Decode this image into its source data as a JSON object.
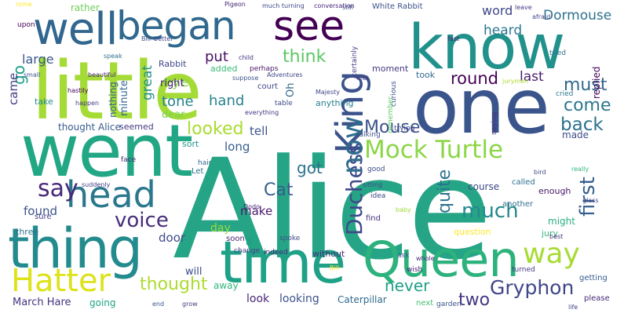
{
  "words": [
    {
      "text": "Alice",
      "color": "#26a586"
    },
    {
      "text": "little",
      "color": "#a5db36"
    },
    {
      "text": "one",
      "color": "#3a548c"
    },
    {
      "text": "went",
      "color": "#22a785"
    },
    {
      "text": "know",
      "color": "#21918c"
    },
    {
      "text": "time",
      "color": "#1fa187"
    },
    {
      "text": "Queen",
      "color": "#2db27d"
    },
    {
      "text": "thing",
      "color": "#238a8d"
    },
    {
      "text": "head",
      "color": "#2a788e"
    },
    {
      "text": "well",
      "color": "#31668e"
    },
    {
      "text": "began",
      "color": "#31688e"
    },
    {
      "text": "see",
      "color": "#440154"
    },
    {
      "text": "King",
      "color": "#3b528b"
    },
    {
      "text": "Mock Turtle",
      "color": "#8bd646"
    },
    {
      "text": "Hatter",
      "color": "#dde318"
    },
    {
      "text": "way",
      "color": "#a8db34"
    },
    {
      "text": "Duchess",
      "color": "#3e4a89"
    },
    {
      "text": "now",
      "color": "#2f6c8e"
    },
    {
      "text": "say",
      "color": "#482878"
    },
    {
      "text": "voice",
      "color": "#472d7b"
    },
    {
      "text": "much",
      "color": "#23898e"
    },
    {
      "text": "Gryphon",
      "color": "#404688"
    },
    {
      "text": "first",
      "color": "#355f8d"
    },
    {
      "text": "thought",
      "color": "#addc30"
    },
    {
      "text": "think",
      "color": "#5cc863"
    },
    {
      "text": "Mouse",
      "color": "#3b528b"
    },
    {
      "text": "looked",
      "color": "#aadc32"
    },
    {
      "text": "round",
      "color": "#440154"
    },
    {
      "text": "must",
      "color": "#31688e"
    },
    {
      "text": "come",
      "color": "#2a788e"
    },
    {
      "text": "back",
      "color": "#2c728e"
    },
    {
      "text": "quite",
      "color": "#2c738e"
    },
    {
      "text": "Cat",
      "color": "#355f8d"
    },
    {
      "text": "two",
      "color": "#453781"
    },
    {
      "text": "go",
      "color": "#1f9e89"
    },
    {
      "text": "never",
      "color": "#1f9f88"
    },
    {
      "text": "got",
      "color": "#2c728e"
    },
    {
      "text": "eye",
      "color": "#89d548"
    },
    {
      "text": "put",
      "color": "#471063"
    },
    {
      "text": "great",
      "color": "#21918c"
    },
    {
      "text": "tone",
      "color": "#25838e"
    },
    {
      "text": "hand",
      "color": "#26828e"
    },
    {
      "text": "last",
      "color": "#481a6c"
    },
    {
      "text": "Dormouse",
      "color": "#2d718e"
    },
    {
      "text": "heard",
      "color": "#2a778e"
    },
    {
      "text": "word",
      "color": "#3f4889"
    },
    {
      "text": "rather",
      "color": "#6ece58"
    },
    {
      "text": "large",
      "color": "#38588c"
    },
    {
      "text": "came",
      "color": "#433e85"
    },
    {
      "text": "long",
      "color": "#365c8d"
    },
    {
      "text": "make",
      "color": "#48186a"
    },
    {
      "text": "day",
      "color": "#a0da39"
    },
    {
      "text": "door",
      "color": "#3e4989"
    },
    {
      "text": "found",
      "color": "#3a538b"
    },
    {
      "text": "tell",
      "color": "#3a548c"
    },
    {
      "text": "March Hare",
      "color": "#46337f"
    },
    {
      "text": "going",
      "color": "#20a386"
    },
    {
      "text": "look",
      "color": "#482475"
    },
    {
      "text": "looking",
      "color": "#3b528b"
    },
    {
      "text": "Caterpillar",
      "color": "#2f6b8e"
    },
    {
      "text": "will",
      "color": "#3e4a89"
    },
    {
      "text": "away",
      "color": "#32b67a"
    },
    {
      "text": "minute",
      "color": "#30698e"
    },
    {
      "text": "nothing",
      "color": "#33638d"
    },
    {
      "text": "right",
      "color": "#482374"
    },
    {
      "text": "added",
      "color": "#3aba76"
    },
    {
      "text": "Rabbit",
      "color": "#3f4788"
    },
    {
      "text": "thought Alice",
      "color": "#365d8d"
    },
    {
      "text": "seemed",
      "color": "#443983"
    },
    {
      "text": "dear",
      "color": "#7ad151"
    },
    {
      "text": "Oh",
      "color": "#31668e"
    },
    {
      "text": "replied",
      "color": "#440154"
    },
    {
      "text": "made",
      "color": "#3d4d8a"
    },
    {
      "text": "might",
      "color": "#29af7f"
    },
    {
      "text": "course",
      "color": "#3f4788"
    },
    {
      "text": "White Rabbit",
      "color": "#3b528b"
    },
    {
      "text": "moment",
      "color": "#453882"
    },
    {
      "text": "took",
      "color": "#31688e"
    },
    {
      "text": "take",
      "color": "#238a8d"
    },
    {
      "text": "sure",
      "color": "#433e85"
    },
    {
      "text": "soon",
      "color": "#482677"
    },
    {
      "text": "anything",
      "color": "#27808e"
    },
    {
      "text": "without",
      "color": "#472e7c"
    },
    {
      "text": "another",
      "color": "#2e6f8e"
    },
    {
      "text": "enough",
      "color": "#48186a"
    },
    {
      "text": "question",
      "color": "#fde725"
    },
    {
      "text": "three",
      "color": "#2c738e"
    },
    {
      "text": "Let",
      "color": "#2c728e"
    },
    {
      "text": "upon",
      "color": "#440154"
    },
    {
      "text": "jury",
      "color": "#35b779"
    },
    {
      "text": "beautiful",
      "color": "#482475"
    },
    {
      "text": "sort",
      "color": "#1f998a"
    },
    {
      "text": "talking",
      "color": "#3b528b"
    },
    {
      "text": "perhaps",
      "color": "#48186a"
    },
    {
      "text": "table",
      "color": "#3e4a89"
    },
    {
      "text": "certainly",
      "color": "#433e85"
    },
    {
      "text": "remember",
      "color": "#5ec962"
    },
    {
      "text": "idea",
      "color": "#3f4788"
    },
    {
      "text": "face",
      "color": "#482475"
    },
    {
      "text": "garden",
      "color": "#3b528b"
    },
    {
      "text": "next",
      "color": "#44bf70"
    },
    {
      "text": "please",
      "color": "#482878"
    },
    {
      "text": "saying",
      "color": "#46327e"
    },
    {
      "text": "called",
      "color": "#2d708e"
    },
    {
      "text": "turned",
      "color": "#453781"
    },
    {
      "text": "getting",
      "color": "#365c8d"
    },
    {
      "text": "better",
      "color": "#3f4788"
    },
    {
      "text": "cried",
      "color": "#2a788e"
    },
    {
      "text": "feet",
      "color": "#443a83"
    },
    {
      "text": "ask",
      "color": "#3b528b"
    },
    {
      "text": "wish",
      "color": "#482173"
    },
    {
      "text": "find",
      "color": "#46327e"
    },
    {
      "text": "good",
      "color": "#3e4a89"
    },
    {
      "text": "hair",
      "color": "#31688e"
    },
    {
      "text": "trying",
      "color": "#404688"
    },
    {
      "text": "small",
      "color": "#3b528b"
    },
    {
      "text": "indeed",
      "color": "#482878"
    },
    {
      "text": "spoke",
      "color": "#3e4a89"
    },
    {
      "text": "change",
      "color": "#433e85"
    },
    {
      "text": "speak",
      "color": "#2c728e"
    },
    {
      "text": "suppose",
      "color": "#3b528b"
    },
    {
      "text": "everything",
      "color": "#46337f"
    },
    {
      "text": "court",
      "color": "#3f4788"
    },
    {
      "text": "tried",
      "color": "#2d708e"
    },
    {
      "text": "Pigeon",
      "color": "#482475"
    },
    {
      "text": "much turning",
      "color": "#3e4989"
    },
    {
      "text": "conversation",
      "color": "#482677"
    },
    {
      "text": "still",
      "color": "#3b528b"
    },
    {
      "text": "leave",
      "color": "#443983"
    },
    {
      "text": "afraid",
      "color": "#3f4889"
    },
    {
      "text": "rome",
      "color": "#fde725"
    },
    {
      "text": "jurymen",
      "color": "#addc30"
    },
    {
      "text": "Dodo",
      "color": "#482475"
    },
    {
      "text": "Bill",
      "color": "#3b528b"
    },
    {
      "text": "really",
      "color": "#35b779"
    },
    {
      "text": "baby",
      "color": "#a0da39"
    },
    {
      "text": "sitting",
      "color": "#3e4a89"
    },
    {
      "text": "suddenly",
      "color": "#433e85"
    },
    {
      "text": "child",
      "color": "#46327e"
    },
    {
      "text": "Adventures",
      "color": "#404688"
    },
    {
      "text": "happen",
      "color": "#443983"
    },
    {
      "text": "curious",
      "color": "#3b528b"
    },
    {
      "text": "Majesty",
      "color": "#3f4788"
    },
    {
      "text": "hastily",
      "color": "#440154"
    },
    {
      "text": "fast",
      "color": "#482475"
    },
    {
      "text": "bird",
      "color": "#3e4a89"
    },
    {
      "text": "grow",
      "color": "#433e85"
    },
    {
      "text": "end",
      "color": "#3b528b"
    },
    {
      "text": "Bill",
      "color": "#fde725"
    },
    {
      "text": "whole",
      "color": "#482878"
    },
    {
      "text": "life",
      "color": "#3f4788"
    },
    {
      "text": "best",
      "color": "#46327e"
    },
    {
      "text": "glass",
      "color": "#404688"
    }
  ]
}
